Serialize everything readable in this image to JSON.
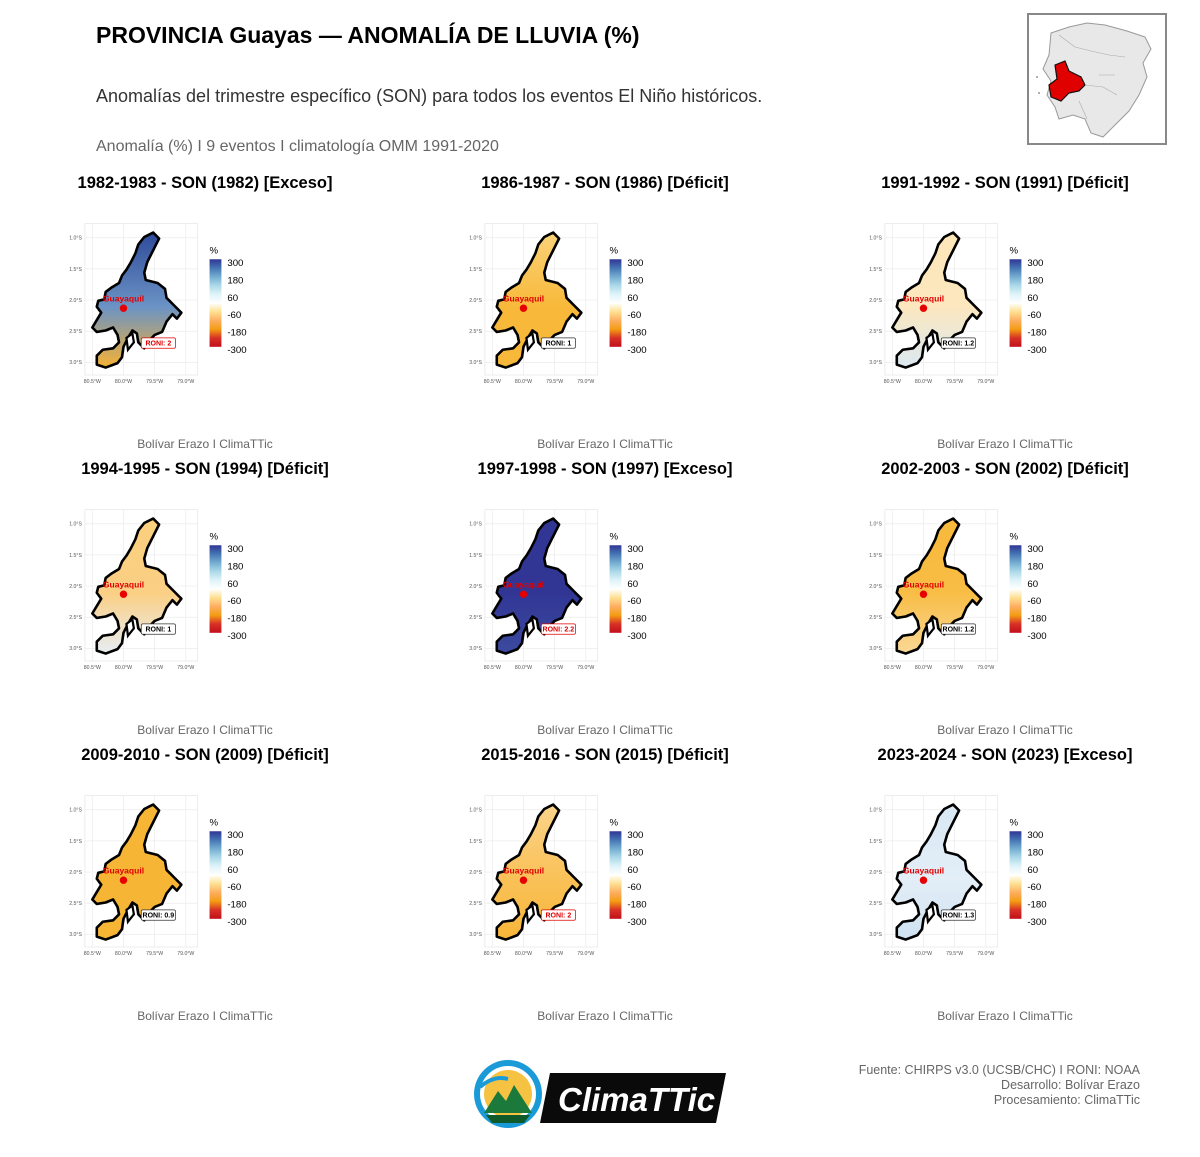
{
  "header": {
    "title": "PROVINCIA Guayas — ANOMALÍA DE LLUVIA (%)",
    "subtitle": "Anomalías del trimestre específico (SON) para todos los eventos El Niño históricos.",
    "caption": "Anomalía (%)  I  9 eventos  I  climatología OMM 1991-2020"
  },
  "legend": {
    "title": "%",
    "labels": [
      "300",
      "180",
      "60",
      "-60",
      "-180",
      "-300"
    ],
    "colors": [
      "#313695",
      "#4575b4",
      "#74add1",
      "#abd9e9",
      "#e0f3f8",
      "#ffffff",
      "#fee090",
      "#fdae61",
      "#f39c12",
      "#d73027",
      "#c0101a"
    ]
  },
  "map": {
    "city_label": "Guayaquil",
    "x_ticks": [
      "80.5°W",
      "80.0°W",
      "79.5°W",
      "79.0°W"
    ],
    "y_ticks": [
      "1.0°S",
      "1.5°S",
      "2.0°S",
      "2.5°S",
      "3.0°S"
    ],
    "credit": "Bolívar Erazo I ClimaTTic"
  },
  "panels": [
    {
      "title": "1982-1983 - SON (1982) [Exceso]",
      "roni": "RONI: 2",
      "highlight": true,
      "fill": "#6b93c5",
      "north": "#2e4a9a",
      "south": "#f6b234"
    },
    {
      "title": "1986-1987 - SON (1986) [Déficit]",
      "roni": "RONI: 1",
      "highlight": false,
      "fill": "#f8b93a",
      "north": "#fad27a",
      "south": "#f8b93a"
    },
    {
      "title": "1991-1992 - SON (1991) [Déficit]",
      "roni": "RONI: 1.2",
      "highlight": false,
      "fill": "#fce7bf",
      "north": "#fde6b8",
      "south": "#dbe9f2"
    },
    {
      "title": "1994-1995 - SON (1994) [Déficit]",
      "roni": "RONI: 1",
      "highlight": false,
      "fill": "#fbcf84",
      "north": "#fad07e",
      "south": "#e6eef4"
    },
    {
      "title": "1997-1998 - SON (1997) [Exceso]",
      "roni": "RONI: 2.2",
      "highlight": true,
      "fill": "#313695",
      "north": "#313695",
      "south": "#3b4a9e"
    },
    {
      "title": "2002-2003 - SON (2002) [Déficit]",
      "roni": "RONI: 1.2",
      "highlight": false,
      "fill": "#f8bd45",
      "north": "#f7b93c",
      "south": "#fad896"
    },
    {
      "title": "2009-2010 - SON (2009) [Déficit]",
      "roni": "RONI: 0.9",
      "highlight": false,
      "fill": "#f7b535",
      "north": "#f7b535",
      "south": "#f7b535"
    },
    {
      "title": "2015-2016 - SON (2015) [Déficit]",
      "roni": "RONI: 2",
      "highlight": true,
      "fill": "#f9c158",
      "north": "#fbd48a",
      "south": "#f8b63a"
    },
    {
      "title": "2023-2024 - SON (2023) [Exceso]",
      "roni": "RONI: 1.3",
      "highlight": false,
      "fill": "#e3eef7",
      "north": "#d9e8f4",
      "south": "#cfe2f1"
    }
  ],
  "footer": {
    "source": "Fuente: CHIRPS v3.0 (UCSB/CHC) I RONI: NOAA",
    "dev": "Desarrollo: Bolívar Erazo",
    "proc": "Procesamiento: ClimaTTic"
  },
  "logo": {
    "text": "ClimaTTic"
  }
}
